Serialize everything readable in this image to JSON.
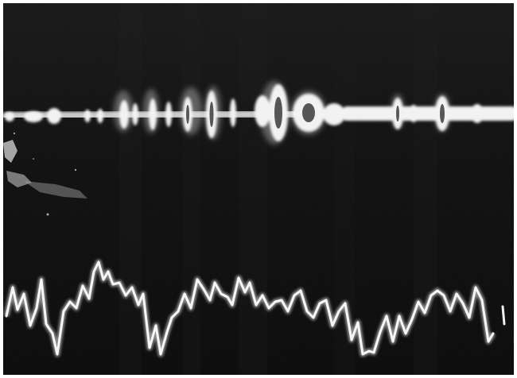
{
  "image": {
    "subject": "oscilloscope-photograph",
    "palette": {
      "background": "#0b0b0b",
      "trace": "#f2f2f2",
      "glow": "#c8c8c8",
      "border": "#ffffff"
    },
    "icons": [
      "upper-modulated-band",
      "lower-waveform-trace"
    ]
  }
}
